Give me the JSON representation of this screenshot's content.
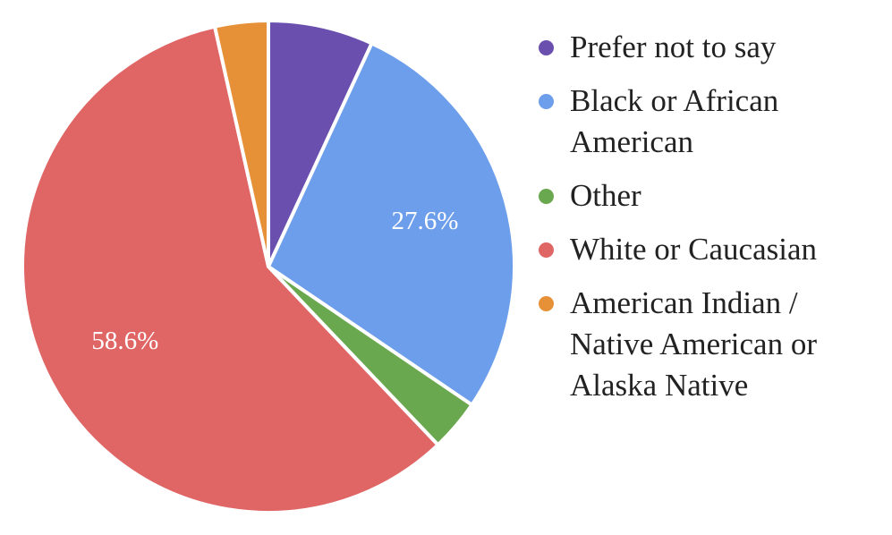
{
  "chart_data": {
    "type": "pie",
    "categories": [
      "Prefer not to say",
      "Black or African American",
      "Other",
      "White or Caucasian",
      "American Indian / Native American or Alaska Native"
    ],
    "values": [
      6.9,
      27.6,
      3.4,
      58.6,
      3.5
    ],
    "value_labels": [
      null,
      "27.6%",
      null,
      "58.6%",
      null
    ],
    "colors": [
      "#6a4fae",
      "#6d9eeb",
      "#6aa84f",
      "#e06666",
      "#e69138"
    ],
    "legend": "right"
  }
}
